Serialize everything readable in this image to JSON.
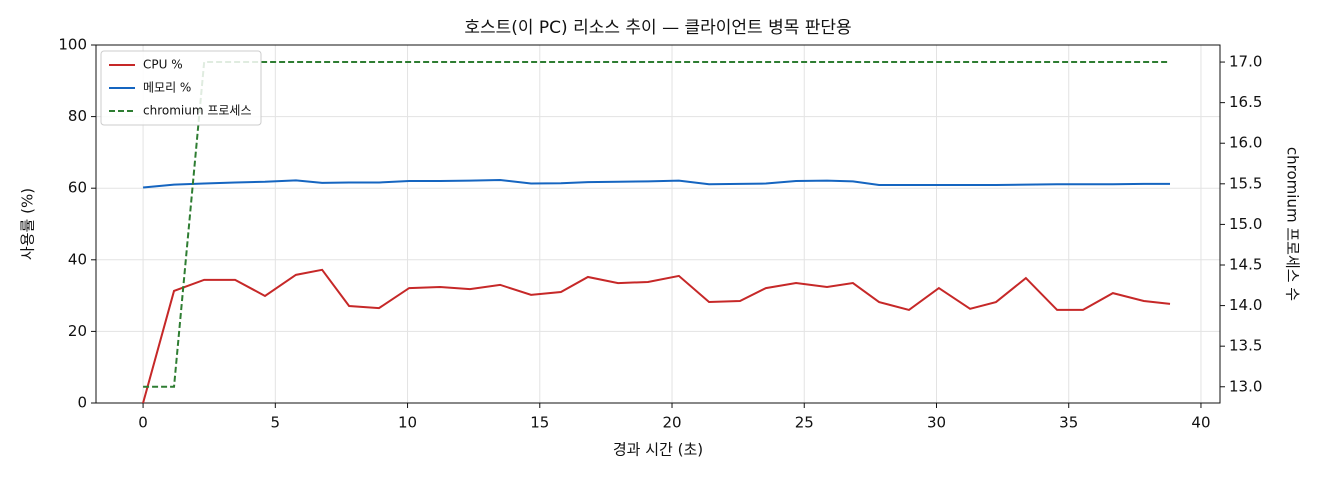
{
  "chart_data": {
    "type": "line",
    "title": "호스트(이 PC) 리소스 추이 — 클라이언트 병목 판단용",
    "x_label": "경과 시간 (초)",
    "y_label": "사용률 (%)",
    "y2_label": "chromium 프로세스 수",
    "x": [
      0,
      1.17,
      2.31,
      3.48,
      4.61,
      5.78,
      6.77,
      7.79,
      8.92,
      10.06,
      11.23,
      12.36,
      13.5,
      14.67,
      15.8,
      16.82,
      17.96,
      19.09,
      20.26,
      21.4,
      22.57,
      23.55,
      24.69,
      25.86,
      26.84,
      27.83,
      28.96,
      30.09,
      31.27,
      32.25,
      33.38,
      34.56,
      35.54,
      36.67,
      37.84,
      38.83
    ],
    "series": [
      {
        "name": "CPU %",
        "color": "#c62828",
        "linestyle": "solid",
        "values": [
          0,
          31.3,
          34.4,
          34.4,
          29.9,
          35.8,
          37.2,
          27.1,
          26.5,
          32.1,
          32.4,
          31.8,
          33.0,
          30.2,
          31.0,
          35.2,
          33.5,
          33.8,
          35.5,
          28.2,
          28.5,
          32.1,
          33.5,
          32.4,
          33.5,
          28.2,
          26.0,
          32.1,
          26.3,
          28.2,
          34.9,
          26.0,
          26.0,
          30.7,
          28.5,
          27.7
        ]
      },
      {
        "name": "메모리 %",
        "color": "#1565c0",
        "linestyle": "solid",
        "values": [
          60.2,
          61.0,
          61.3,
          61.6,
          61.8,
          62.2,
          61.5,
          61.6,
          61.6,
          62.0,
          62.0,
          62.1,
          62.3,
          61.3,
          61.4,
          61.7,
          61.8,
          61.9,
          62.1,
          61.1,
          61.2,
          61.3,
          62.0,
          62.1,
          61.9,
          60.9,
          60.9,
          60.9,
          60.9,
          60.9,
          61.0,
          61.1,
          61.1,
          61.1,
          61.2,
          61.2
        ]
      },
      {
        "name": "chromium 프로세스",
        "color": "#2e7d32",
        "linestyle": "dashed",
        "axis": "y2",
        "values": [
          13,
          13,
          17,
          17,
          17,
          17,
          17,
          17,
          17,
          17,
          17,
          17,
          17,
          17,
          17,
          17,
          17,
          17,
          17,
          17,
          17,
          17,
          17,
          17,
          17,
          17,
          17,
          17,
          17,
          17,
          17,
          17,
          17,
          17,
          17,
          17
        ]
      }
    ],
    "xlim": [
      -1.78,
      40.72
    ],
    "xticks": [
      0,
      5,
      10,
      15,
      20,
      25,
      30,
      35,
      40
    ],
    "ylim": [
      0,
      100
    ],
    "yticks": [
      0,
      20,
      40,
      60,
      80,
      100
    ],
    "y2lim": [
      12.8,
      17.21
    ],
    "y2ticks": [
      {
        "value": 13,
        "label": "13.0"
      },
      13.5,
      {
        "value": 14,
        "label": "14.0"
      },
      14.5,
      {
        "value": 15,
        "label": "15.0"
      },
      15.5,
      {
        "value": 16,
        "label": "16.0"
      },
      16.5,
      {
        "value": 17,
        "label": "17.0"
      }
    ],
    "grid": true,
    "legend": "upper-left"
  }
}
